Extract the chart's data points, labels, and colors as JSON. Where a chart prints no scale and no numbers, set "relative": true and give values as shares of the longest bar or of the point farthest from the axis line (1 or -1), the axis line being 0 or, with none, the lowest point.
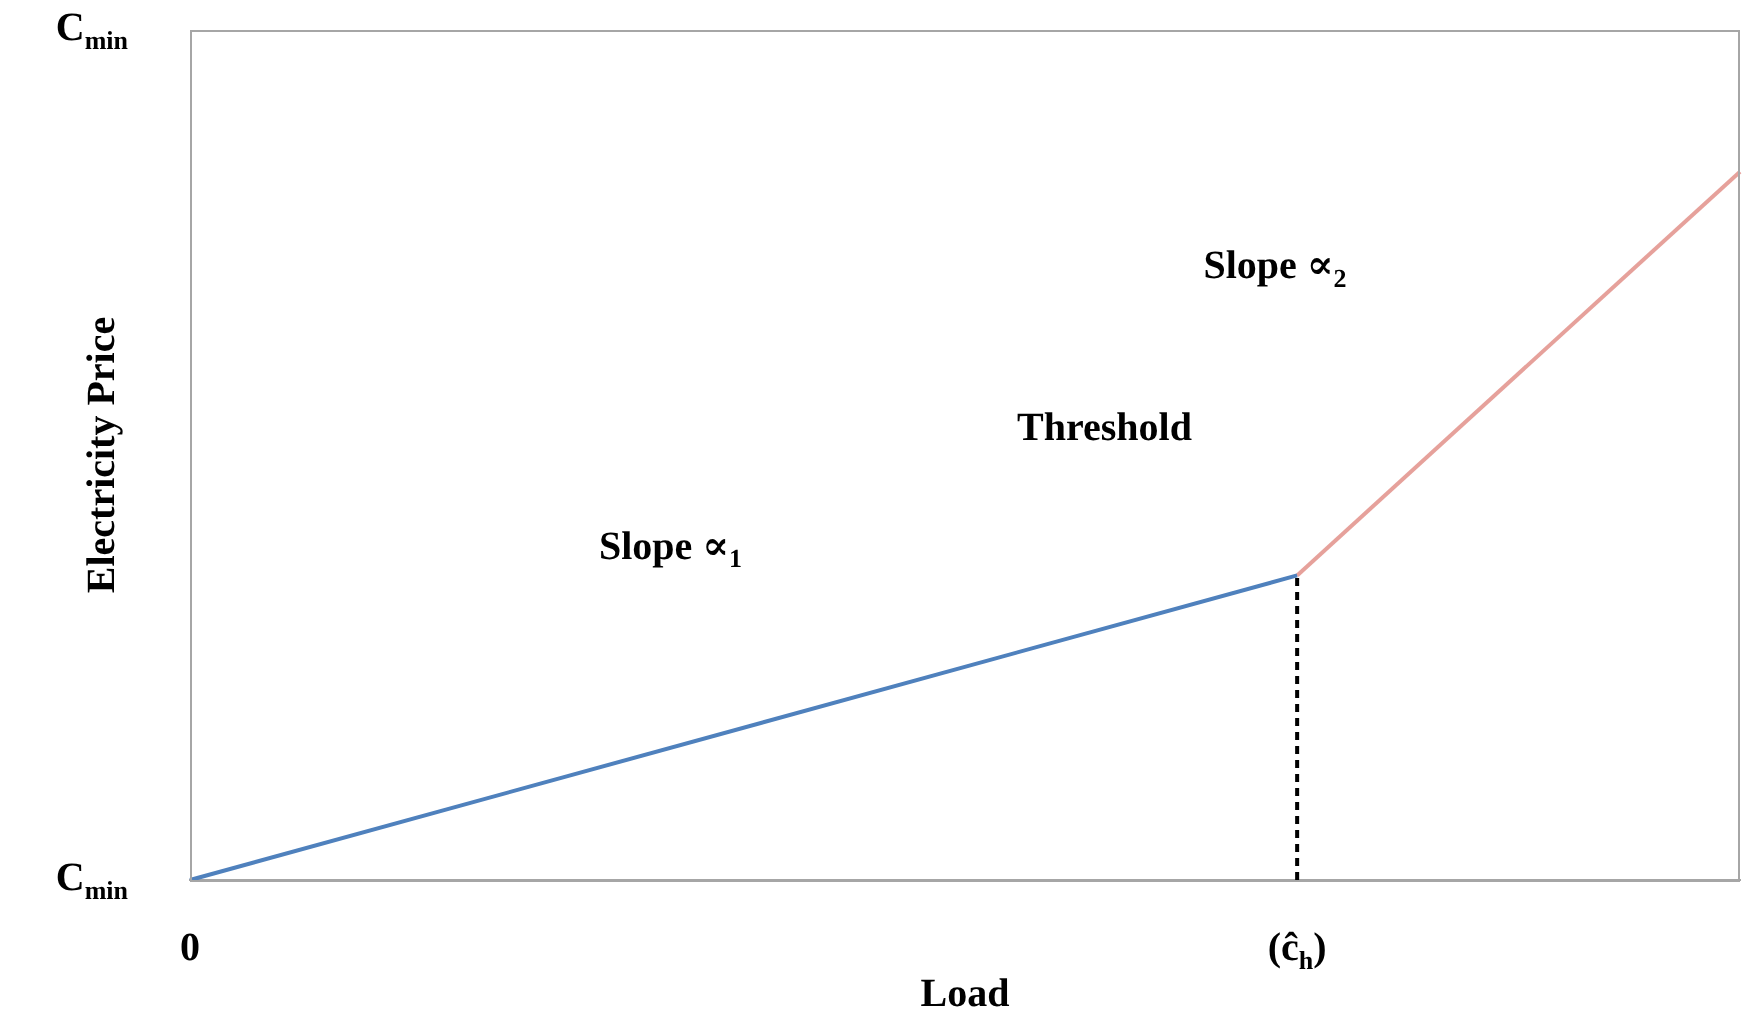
{
  "chart_data": {
    "type": "line",
    "relative": true,
    "xlabel": "Load",
    "ylabel": "Electricity Price",
    "categories": [
      "0",
      null,
      null,
      null,
      null,
      null,
      null,
      null,
      null,
      null,
      "(ĉ$_{h}$)",
      null,
      null,
      null,
      null
    ],
    "series": [
      {
        "values": [
          0,
          null,
          null,
          null,
          null,
          null,
          null,
          null,
          null,
          null,
          0.43,
          null,
          null,
          null,
          null
        ],
        "color": "#4f81bd"
      },
      {
        "values": [
          null,
          null,
          null,
          null,
          null,
          null,
          null,
          null,
          null,
          null,
          0.43,
          null,
          null,
          null,
          1
        ],
        "color": "#e6a19b"
      }
    ],
    "ref_lines": [
      {
        "axis": "x",
        "value": "(ĉ$_{h}$)",
        "color": "#000000",
        "line_style": "dashed"
      }
    ],
    "annotations": [
      "C$_{min}$",
      "C$_{min}$",
      "Threshold",
      "Slope ∝$_{1}$",
      "Slope ∝$_{2}$"
    ],
    "grid": false,
    "legend": false
  }
}
